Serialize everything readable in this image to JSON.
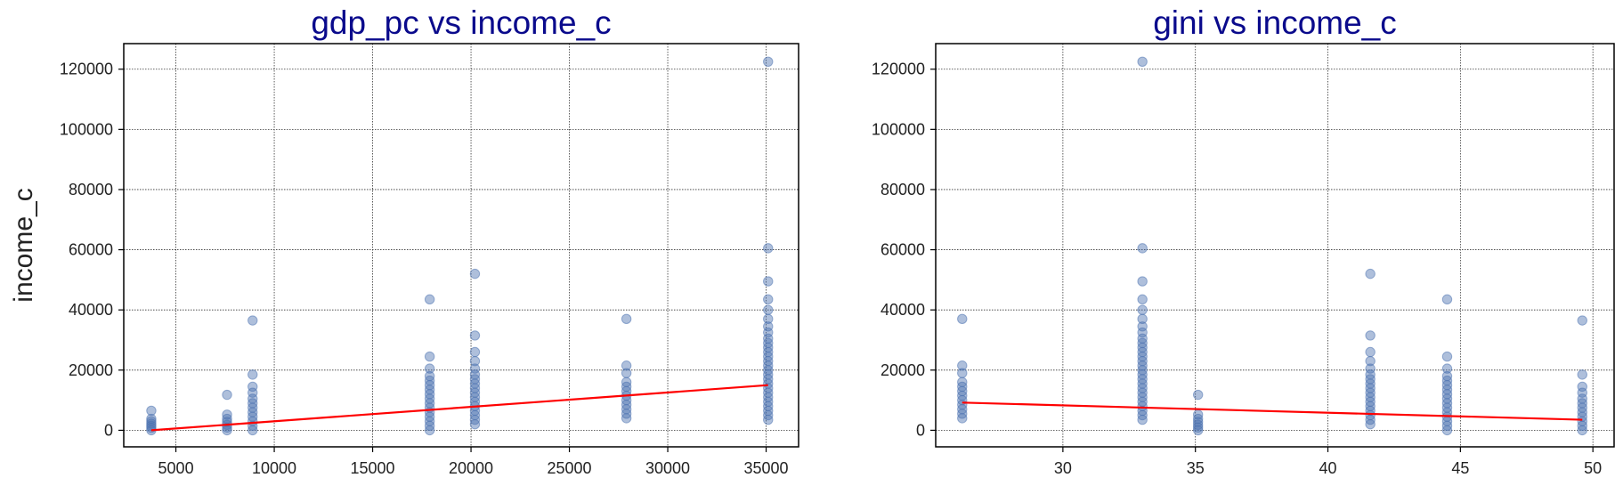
{
  "colors": {
    "title": "#0a0a8c",
    "point": "#4c72b0",
    "fit_line": "#ff0000",
    "grid": "#333333",
    "axis": "#000000",
    "text": "#222222"
  },
  "chart_data": [
    {
      "type": "scatter",
      "title": "gdp_pc vs income_c",
      "xlabel": "",
      "ylabel": "income_c",
      "xlim": [
        2350,
        36650
      ],
      "ylim": [
        -5500,
        128500
      ],
      "xticks": [
        5000,
        10000,
        15000,
        20000,
        25000,
        30000,
        35000
      ],
      "yticks": [
        0,
        20000,
        40000,
        60000,
        80000,
        100000,
        120000
      ],
      "grid": true,
      "groups": [
        {
          "x": 3750,
          "values": [
            0,
            800,
            1500,
            2200,
            3000,
            3800,
            6500
          ]
        },
        {
          "x": 7600,
          "values": [
            0,
            900,
            1800,
            2800,
            3800,
            5200,
            11800
          ]
        },
        {
          "x": 8900,
          "values": [
            0,
            1500,
            3000,
            4500,
            6000,
            7500,
            9000,
            10500,
            12500,
            14500,
            18500,
            36500
          ]
        },
        {
          "x": 17900,
          "values": [
            0,
            1500,
            3000,
            4500,
            6000,
            7500,
            9000,
            10500,
            12000,
            13500,
            15000,
            16500,
            18000,
            20500,
            24500,
            43500
          ]
        },
        {
          "x": 20200,
          "values": [
            2000,
            3500,
            5000,
            6500,
            8000,
            9500,
            11000,
            12500,
            14000,
            15500,
            17000,
            18500,
            20500,
            23000,
            26000,
            31500,
            52000
          ]
        },
        {
          "x": 27900,
          "values": [
            4000,
            5500,
            7000,
            8500,
            10000,
            11500,
            13000,
            14500,
            16000,
            19000,
            21500,
            37000
          ]
        },
        {
          "x": 35100,
          "values": [
            3500,
            5000,
            6500,
            8000,
            9500,
            11000,
            12500,
            14000,
            15500,
            17000,
            18500,
            20000,
            21500,
            23000,
            24500,
            26000,
            27500,
            29000,
            30500,
            32500,
            34500,
            37000,
            40000,
            43500,
            49500,
            60500,
            122500
          ]
        }
      ],
      "fit_line": {
        "x": [
          3750,
          35100
        ],
        "y": [
          0,
          15000
        ]
      }
    },
    {
      "type": "scatter",
      "title": "gini vs income_c",
      "xlabel": "",
      "ylabel": "",
      "xlim": [
        25.2,
        50.8
      ],
      "ylim": [
        -5500,
        128500
      ],
      "xticks": [
        30,
        35,
        40,
        45,
        50
      ],
      "yticks": [
        0,
        20000,
        40000,
        60000,
        80000,
        100000,
        120000
      ],
      "grid": true,
      "groups": [
        {
          "x": 26.2,
          "values": [
            4000,
            5500,
            7000,
            8500,
            10000,
            11500,
            13000,
            14500,
            16000,
            19000,
            21500,
            37000
          ]
        },
        {
          "x": 33.0,
          "values": [
            3500,
            5000,
            6500,
            8000,
            9500,
            11000,
            12500,
            14000,
            15500,
            17000,
            18500,
            20000,
            21500,
            23000,
            24500,
            26000,
            27500,
            29000,
            30500,
            32500,
            34500,
            37000,
            40000,
            43500,
            49500,
            60500,
            122500
          ]
        },
        {
          "x": 35.1,
          "values": [
            0,
            900,
            1800,
            2800,
            3800,
            5200,
            11800
          ]
        },
        {
          "x": 41.6,
          "values": [
            2000,
            3500,
            5000,
            6500,
            8000,
            9500,
            11000,
            12500,
            14000,
            15500,
            17000,
            18500,
            20500,
            23000,
            26000,
            31500,
            52000
          ]
        },
        {
          "x": 44.5,
          "values": [
            0,
            1500,
            3000,
            4500,
            6000,
            7500,
            9000,
            10500,
            12000,
            13500,
            15000,
            16500,
            18000,
            20500,
            24500,
            43500
          ]
        },
        {
          "x": 49.6,
          "values": [
            0,
            1500,
            3000,
            4500,
            6000,
            7500,
            9000,
            10500,
            12500,
            14500,
            18500,
            36500
          ]
        }
      ],
      "fit_line": {
        "x": [
          26.2,
          49.6
        ],
        "y": [
          9200,
          3500
        ]
      }
    }
  ]
}
